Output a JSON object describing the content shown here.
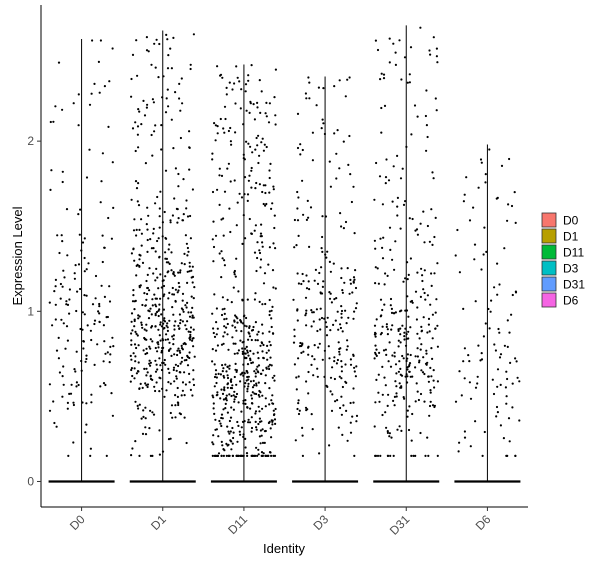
{
  "chart_data": {
    "type": "violin-scatter",
    "title": "",
    "xlabel": "Identity",
    "ylabel": "Expression Level",
    "ylim": [
      -0.15,
      2.8
    ],
    "y_ticks": [
      0,
      1,
      2
    ],
    "grid": false,
    "legend_position": "right",
    "categories": [
      "D0",
      "D1",
      "D11",
      "D3",
      "D31",
      "D6"
    ],
    "series": [
      {
        "name": "D0",
        "color": "#F8766D",
        "max": 2.6,
        "zero_fraction": 0.55,
        "n_expressed": 170,
        "center": 0.85
      },
      {
        "name": "D1",
        "color": "#B79F00",
        "max": 2.65,
        "zero_fraction": 0.45,
        "n_expressed": 520,
        "center": 0.9
      },
      {
        "name": "D11",
        "color": "#00BA38",
        "max": 2.45,
        "zero_fraction": 0.45,
        "n_expressed": 600,
        "center": 0.55
      },
      {
        "name": "D3",
        "color": "#00BFC4",
        "max": 2.38,
        "zero_fraction": 0.5,
        "n_expressed": 260,
        "center": 0.8
      },
      {
        "name": "D31",
        "color": "#619CFF",
        "max": 2.68,
        "zero_fraction": 0.5,
        "n_expressed": 330,
        "center": 0.75
      },
      {
        "name": "D6",
        "color": "#F564E3",
        "max": 1.98,
        "zero_fraction": 0.6,
        "n_expressed": 110,
        "center": 0.6
      }
    ]
  }
}
